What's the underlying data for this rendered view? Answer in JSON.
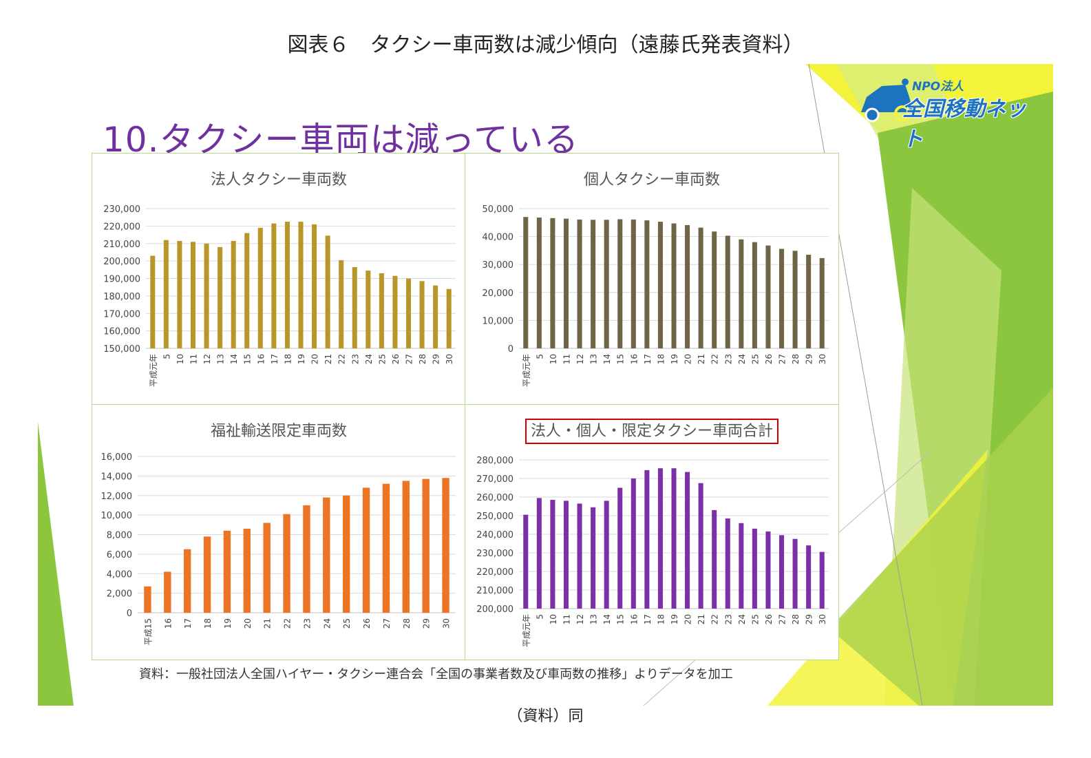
{
  "figure_title": "図表６　タクシー車両数は減少傾向（遠藤氏発表資料）",
  "slide_heading": "10.タクシー車両は減っている",
  "logo": {
    "org": "NPO法人",
    "name": "全国移動ネット"
  },
  "colors": {
    "corporate": "#b8962a",
    "individual": "#6f6445",
    "welfare": "#ed7325",
    "total": "#7b2fa8",
    "accent_green": "#8cc63f",
    "accent_yellow": "#f3f33c",
    "highlight_box": "#d00000"
  },
  "source_note": "資料：一般社団法人全国ハイヤー・タクシー連合会「全国の事業者数及び車両数の推移」よりデータを加工",
  "caption": "（資料）同",
  "chart_data": [
    {
      "type": "bar",
      "title": "法人タクシー車両数",
      "categories": [
        "平成元年",
        "5",
        "10",
        "11",
        "12",
        "13",
        "14",
        "15",
        "16",
        "17",
        "18",
        "19",
        "20",
        "21",
        "22",
        "23",
        "24",
        "25",
        "26",
        "27",
        "28",
        "29",
        "30"
      ],
      "values": [
        203000,
        212000,
        211500,
        211000,
        210000,
        208000,
        211500,
        216000,
        219000,
        221500,
        222500,
        222500,
        221000,
        214500,
        200500,
        196500,
        194500,
        193000,
        191500,
        190000,
        188500,
        186000,
        184000
      ],
      "ylim": [
        150000,
        230000
      ],
      "yticks": [
        150000,
        160000,
        170000,
        180000,
        190000,
        200000,
        210000,
        220000,
        230000
      ],
      "ytick_labels": [
        "150,000",
        "160,000",
        "170,000",
        "180,000",
        "190,000",
        "200,000",
        "210,000",
        "220,000",
        "230,000"
      ],
      "grid": true
    },
    {
      "type": "bar",
      "title": "個人タクシー車両数",
      "categories": [
        "平成元年",
        "5",
        "10",
        "11",
        "12",
        "13",
        "14",
        "15",
        "16",
        "17",
        "18",
        "19",
        "20",
        "21",
        "22",
        "23",
        "24",
        "25",
        "26",
        "27",
        "28",
        "29",
        "30"
      ],
      "values": [
        47000,
        46800,
        46600,
        46400,
        46100,
        46000,
        46000,
        46200,
        46100,
        45800,
        45300,
        44700,
        44100,
        43200,
        41800,
        40300,
        39000,
        38000,
        36800,
        35600,
        34900,
        33500,
        32300
      ],
      "ylim": [
        0,
        50000
      ],
      "yticks": [
        0,
        10000,
        20000,
        30000,
        40000,
        50000
      ],
      "ytick_labels": [
        "0",
        "10,000",
        "20,000",
        "30,000",
        "40,000",
        "50,000"
      ],
      "grid": true
    },
    {
      "type": "bar",
      "title": "福祉輸送限定車両数",
      "categories": [
        "平成15",
        "16",
        "17",
        "18",
        "19",
        "20",
        "21",
        "22",
        "23",
        "24",
        "25",
        "26",
        "27",
        "28",
        "29",
        "30"
      ],
      "values": [
        2700,
        4200,
        6500,
        7800,
        8400,
        8600,
        9200,
        10100,
        11000,
        11800,
        12000,
        12800,
        13200,
        13500,
        13700,
        13800
      ],
      "ylim": [
        0,
        16000
      ],
      "yticks": [
        0,
        2000,
        4000,
        6000,
        8000,
        10000,
        12000,
        14000,
        16000
      ],
      "ytick_labels": [
        "0",
        "2,000",
        "4,000",
        "6,000",
        "8,000",
        "10,000",
        "12,000",
        "14,000",
        "16,000"
      ],
      "grid": true
    },
    {
      "type": "bar",
      "title": "法人・個人・限定タクシー車両合計",
      "categories": [
        "平成元年",
        "5",
        "10",
        "11",
        "12",
        "13",
        "14",
        "15",
        "16",
        "17",
        "18",
        "19",
        "20",
        "21",
        "22",
        "23",
        "24",
        "25",
        "26",
        "27",
        "28",
        "29",
        "30"
      ],
      "values": [
        250500,
        259500,
        258500,
        258000,
        256500,
        254500,
        258000,
        265000,
        270000,
        274500,
        275500,
        275500,
        273500,
        267500,
        253000,
        248500,
        246000,
        243000,
        241500,
        239500,
        237500,
        234000,
        230500
      ],
      "ylim": [
        200000,
        280000
      ],
      "yticks": [
        200000,
        210000,
        220000,
        230000,
        240000,
        250000,
        260000,
        270000,
        280000
      ],
      "ytick_labels": [
        "200,000",
        "210,000",
        "220,000",
        "230,000",
        "240,000",
        "250,000",
        "260,000",
        "270,000",
        "280,000"
      ],
      "grid": true
    }
  ]
}
